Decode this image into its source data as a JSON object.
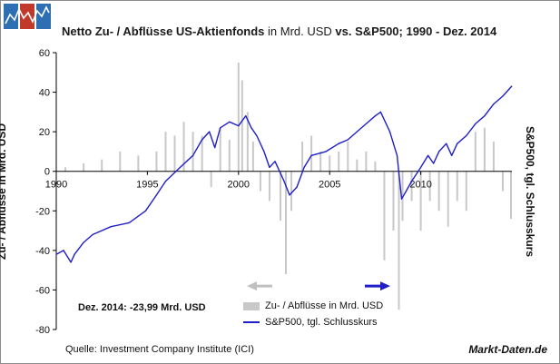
{
  "logo": {
    "name": "markt-daten-logo",
    "colors": [
      "#2e6fb3",
      "#c0392b",
      "#2e6fb3"
    ]
  },
  "chart_data": {
    "type": "bar",
    "title_parts": [
      {
        "text": "Netto Zu- / Abflüsse US-Aktienfonds",
        "bold": true
      },
      {
        "text": " in Mrd. USD ",
        "bold": false
      },
      {
        "text": "vs. S&P500; 1990 - Dez. 2014",
        "bold": true
      }
    ],
    "ylabel": "Zu- / Abflüsse in Mrd. USD",
    "y2label": "S&P500, tgl. Schlusskurs",
    "ylim": [
      -80,
      60
    ],
    "yticks": [
      60,
      40,
      20,
      0,
      -20,
      -40,
      -60,
      -80
    ],
    "xlim": [
      1990,
      2015
    ],
    "xticks": [
      1990,
      1995,
      2000,
      2005,
      2010
    ],
    "grid": false,
    "series": [
      {
        "name": "Zu- / Abflüsse in Mrd. USD",
        "kind": "bar",
        "color": "#c8c8c8",
        "x": [
          1990.5,
          1991.5,
          1992.5,
          1993.5,
          1994.5,
          1995.5,
          1996.0,
          1996.5,
          1997.0,
          1997.5,
          1998.0,
          1998.5,
          1999.0,
          1999.5,
          2000.0,
          2000.2,
          2000.5,
          2000.8,
          2001.2,
          2001.7,
          2002.3,
          2002.6,
          2002.9,
          2003.5,
          2004.0,
          2004.5,
          2005.0,
          2005.5,
          2006.0,
          2006.5,
          2007.0,
          2007.5,
          2008.0,
          2008.5,
          2008.8,
          2009.0,
          2009.5,
          2010.0,
          2010.5,
          2011.0,
          2011.5,
          2012.0,
          2012.5,
          2013.0,
          2013.5,
          2014.0,
          2014.5,
          2014.95
        ],
        "values": [
          2,
          4,
          6,
          10,
          8,
          10,
          20,
          18,
          25,
          20,
          18,
          -8,
          22,
          16,
          55,
          46,
          30,
          15,
          -10,
          -15,
          -25,
          -52,
          -20,
          15,
          18,
          10,
          8,
          10,
          15,
          6,
          10,
          5,
          -45,
          -30,
          -70,
          -25,
          -15,
          -30,
          -15,
          -20,
          -28,
          -15,
          -20,
          20,
          22,
          15,
          -10,
          -24
        ]
      },
      {
        "name": "S&P500, tgl. Schlusskurs",
        "kind": "line",
        "color": "#1f1fc8",
        "x": [
          1990.0,
          1990.4,
          1990.8,
          1991.0,
          1991.5,
          1992.0,
          1993.0,
          1994.0,
          1994.9,
          1995.5,
          1996.0,
          1996.8,
          1997.5,
          1998.0,
          1998.4,
          1998.7,
          1999.0,
          1999.5,
          2000.0,
          2000.4,
          2000.7,
          2001.0,
          2001.4,
          2001.7,
          2002.0,
          2002.5,
          2002.8,
          2003.2,
          2003.6,
          2004.0,
          2004.8,
          2005.5,
          2006.0,
          2006.5,
          2007.0,
          2007.5,
          2007.8,
          2008.3,
          2008.7,
          2008.95,
          2009.2,
          2009.5,
          2010.0,
          2010.4,
          2010.7,
          2011.0,
          2011.4,
          2011.7,
          2012.0,
          2012.5,
          2013.0,
          2013.5,
          2014.0,
          2014.5,
          2014.99
        ],
        "values": [
          -42,
          -40,
          -46,
          -42,
          -36,
          -32,
          -28,
          -26,
          -20,
          -12,
          -5,
          2,
          8,
          16,
          20,
          12,
          22,
          25,
          23,
          28,
          22,
          18,
          10,
          2,
          5,
          -5,
          -12,
          -8,
          2,
          8,
          10,
          14,
          16,
          20,
          24,
          28,
          30,
          20,
          8,
          -14,
          -10,
          -5,
          2,
          8,
          4,
          10,
          14,
          8,
          14,
          18,
          24,
          28,
          34,
          38,
          43
        ]
      }
    ],
    "annotation": "Dez. 2014: -23,99 Mrd. USD",
    "arrows": [
      {
        "direction": "left",
        "color": "#c0c0c0",
        "points_to": "Zu- / Abflüsse in Mrd. USD"
      },
      {
        "direction": "right",
        "color": "#1f1fc8",
        "points_to": "S&P500, tgl. Schlusskurs"
      }
    ],
    "legend_position": "bottom-center"
  },
  "footer": {
    "source": "Quelle: Investment Company Institute (ICI)",
    "brand": "Markt-Daten.de"
  }
}
